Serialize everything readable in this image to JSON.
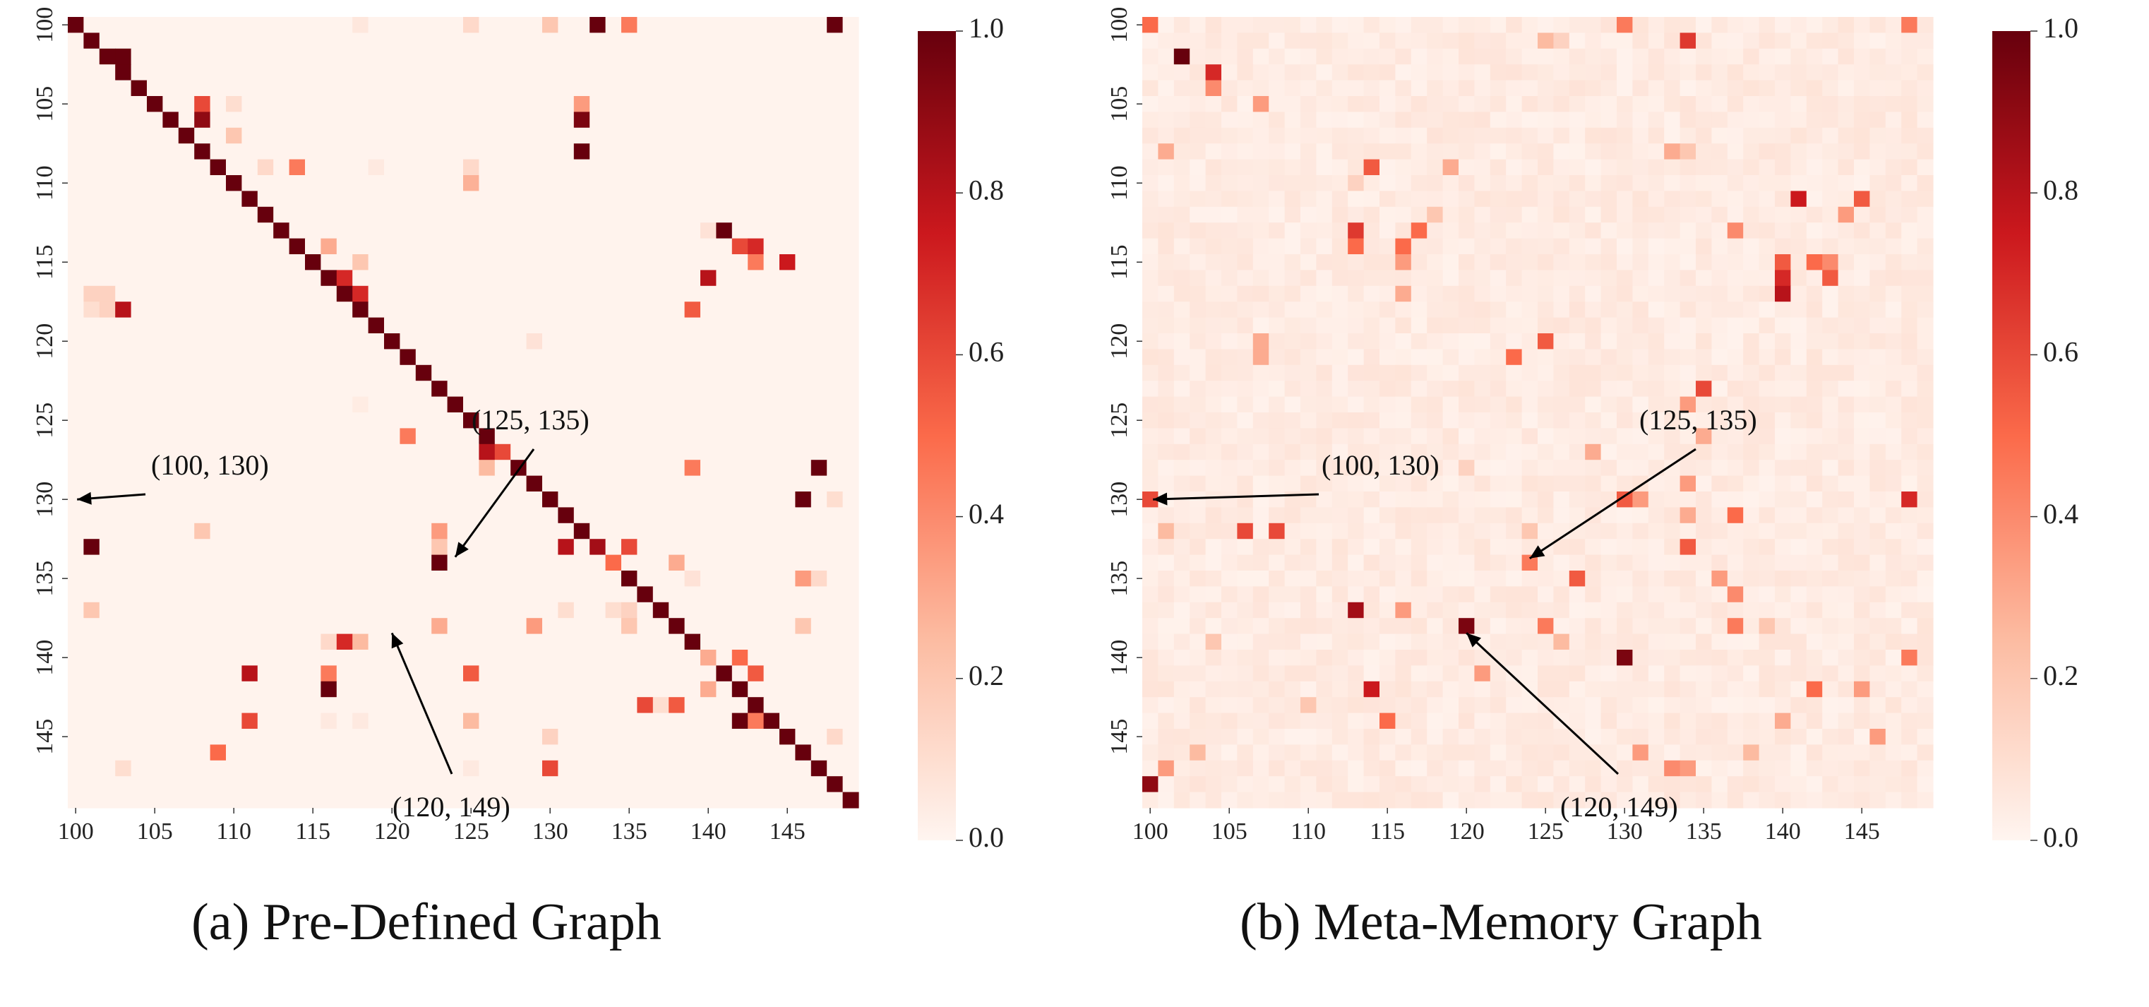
{
  "colors": {
    "low": "#fff5f0",
    "mid_low": "#fcbba1",
    "mid": "#fb6a4a",
    "mid_high": "#cb181d",
    "high": "#67000d"
  },
  "chart_data": [
    {
      "type": "heatmap",
      "title": "(a)  Pre-Defined Graph",
      "xlabel": "",
      "ylabel": "",
      "node_range": [
        100,
        149
      ],
      "x_tick_labels": [
        "100",
        "105",
        "110",
        "115",
        "120",
        "125",
        "130",
        "135",
        "140",
        "145"
      ],
      "y_tick_labels": [
        "100",
        "105",
        "110",
        "115",
        "120",
        "125",
        "130",
        "135",
        "140",
        "145"
      ],
      "colorbar": {
        "range": [
          0.0,
          1.0
        ],
        "tick_labels": [
          "0.0",
          "0.2",
          "0.4",
          "0.6",
          "0.8",
          "1.0"
        ]
      },
      "diagonal_value": 1.0,
      "background_value": 0.01,
      "cells": [
        [
          100,
          130,
          0.2
        ],
        [
          100,
          133,
          1.0
        ],
        [
          100,
          135,
          0.45
        ],
        [
          100,
          148,
          1.0
        ],
        [
          100,
          125,
          0.12
        ],
        [
          100,
          118,
          0.06
        ],
        [
          102,
          102,
          1.0
        ],
        [
          102,
          103,
          1.0
        ],
        [
          105,
          108,
          0.6
        ],
        [
          105,
          110,
          0.1
        ],
        [
          105,
          132,
          0.35
        ],
        [
          106,
          108,
          0.9
        ],
        [
          106,
          132,
          0.95
        ],
        [
          107,
          110,
          0.2
        ],
        [
          108,
          132,
          1.0
        ],
        [
          109,
          112,
          0.12
        ],
        [
          109,
          114,
          0.45
        ],
        [
          109,
          125,
          0.12
        ],
        [
          109,
          119,
          0.05
        ],
        [
          110,
          125,
          0.28
        ],
        [
          113,
          140,
          0.08
        ],
        [
          113,
          141,
          1.0
        ],
        [
          114,
          116,
          0.3
        ],
        [
          114,
          142,
          0.6
        ],
        [
          114,
          143,
          0.7
        ],
        [
          115,
          143,
          0.45
        ],
        [
          115,
          145,
          0.75
        ],
        [
          115,
          118,
          0.2
        ],
        [
          116,
          116,
          1.0
        ],
        [
          116,
          140,
          0.8
        ],
        [
          116,
          117,
          0.7
        ],
        [
          117,
          101,
          0.15
        ],
        [
          117,
          102,
          0.15
        ],
        [
          117,
          118,
          0.7
        ],
        [
          118,
          101,
          0.1
        ],
        [
          118,
          102,
          0.15
        ],
        [
          118,
          103,
          0.8
        ],
        [
          118,
          139,
          0.55
        ],
        [
          120,
          129,
          0.08
        ],
        [
          124,
          118,
          0.04
        ],
        [
          126,
          121,
          0.45
        ],
        [
          127,
          126,
          0.8
        ],
        [
          127,
          127,
          0.6
        ],
        [
          128,
          126,
          0.25
        ],
        [
          128,
          139,
          0.45
        ],
        [
          128,
          147,
          1.0
        ],
        [
          130,
          146,
          1.0
        ],
        [
          130,
          148,
          0.1
        ],
        [
          132,
          108,
          0.2
        ],
        [
          132,
          123,
          0.35
        ],
        [
          133,
          101,
          1.0
        ],
        [
          133,
          123,
          0.2
        ],
        [
          133,
          131,
          0.8
        ],
        [
          133,
          133,
          0.85
        ],
        [
          133,
          135,
          0.6
        ],
        [
          134,
          123,
          1.0
        ],
        [
          134,
          134,
          0.5
        ],
        [
          134,
          138,
          0.3
        ],
        [
          135,
          139,
          0.08
        ],
        [
          135,
          146,
          0.35
        ],
        [
          135,
          147,
          0.12
        ],
        [
          137,
          101,
          0.2
        ],
        [
          137,
          131,
          0.1
        ],
        [
          137,
          134,
          0.1
        ],
        [
          137,
          135,
          0.15
        ],
        [
          138,
          123,
          0.3
        ],
        [
          138,
          129,
          0.35
        ],
        [
          138,
          135,
          0.2
        ],
        [
          138,
          146,
          0.2
        ],
        [
          139,
          117,
          0.7
        ],
        [
          139,
          118,
          0.25
        ],
        [
          139,
          116,
          0.12
        ],
        [
          140,
          140,
          0.3
        ],
        [
          140,
          142,
          0.5
        ],
        [
          141,
          111,
          0.8
        ],
        [
          141,
          116,
          0.45
        ],
        [
          141,
          125,
          0.55
        ],
        [
          141,
          143,
          0.55
        ],
        [
          142,
          116,
          1.0
        ],
        [
          142,
          140,
          0.3
        ],
        [
          143,
          136,
          0.6
        ],
        [
          143,
          138,
          0.55
        ],
        [
          143,
          137,
          0.1
        ],
        [
          144,
          111,
          0.6
        ],
        [
          144,
          118,
          0.05
        ],
        [
          144,
          116,
          0.05
        ],
        [
          144,
          125,
          0.25
        ],
        [
          144,
          142,
          1.0
        ],
        [
          144,
          143,
          0.45
        ],
        [
          145,
          130,
          0.15
        ],
        [
          145,
          148,
          0.12
        ],
        [
          146,
          109,
          0.5
        ],
        [
          147,
          103,
          0.1
        ],
        [
          147,
          130,
          0.6
        ],
        [
          147,
          125,
          0.05
        ]
      ],
      "annotations": [
        {
          "text": "(100, 130)"
        },
        {
          "text": "(125, 135)"
        },
        {
          "text": "(120, 149)"
        }
      ]
    },
    {
      "type": "heatmap",
      "title": "(b)  Meta-Memory Graph",
      "xlabel": "",
      "ylabel": "",
      "node_range": [
        100,
        149
      ],
      "x_tick_labels": [
        "100",
        "105",
        "110",
        "115",
        "120",
        "125",
        "130",
        "135",
        "140",
        "145"
      ],
      "y_tick_labels": [
        "100",
        "105",
        "110",
        "115",
        "120",
        "125",
        "130",
        "135",
        "140",
        "145"
      ],
      "colorbar": {
        "range": [
          0.0,
          1.0
        ],
        "tick_labels": [
          "0.0",
          "0.2",
          "0.4",
          "0.6",
          "0.8",
          "1.0"
        ]
      },
      "diagonal_value": null,
      "background_value": 0.04,
      "cells": [
        [
          100,
          100,
          0.5
        ],
        [
          100,
          130,
          0.45
        ],
        [
          100,
          148,
          0.45
        ],
        [
          101,
          134,
          0.65
        ],
        [
          101,
          125,
          0.25
        ],
        [
          101,
          126,
          0.15
        ],
        [
          102,
          102,
          1.0
        ],
        [
          103,
          104,
          0.7
        ],
        [
          104,
          104,
          0.4
        ],
        [
          105,
          107,
          0.35
        ],
        [
          108,
          101,
          0.3
        ],
        [
          108,
          133,
          0.3
        ],
        [
          108,
          134,
          0.2
        ],
        [
          109,
          114,
          0.55
        ],
        [
          109,
          119,
          0.3
        ],
        [
          110,
          113,
          0.15
        ],
        [
          111,
          141,
          0.75
        ],
        [
          111,
          145,
          0.55
        ],
        [
          112,
          118,
          0.2
        ],
        [
          112,
          144,
          0.35
        ],
        [
          113,
          113,
          0.65
        ],
        [
          113,
          117,
          0.5
        ],
        [
          113,
          137,
          0.4
        ],
        [
          114,
          113,
          0.5
        ],
        [
          114,
          116,
          0.5
        ],
        [
          115,
          116,
          0.35
        ],
        [
          115,
          140,
          0.55
        ],
        [
          115,
          142,
          0.5
        ],
        [
          115,
          143,
          0.4
        ],
        [
          116,
          140,
          0.7
        ],
        [
          116,
          143,
          0.55
        ],
        [
          117,
          140,
          0.8
        ],
        [
          117,
          116,
          0.3
        ],
        [
          120,
          125,
          0.55
        ],
        [
          120,
          107,
          0.3
        ],
        [
          121,
          123,
          0.5
        ],
        [
          121,
          107,
          0.3
        ],
        [
          123,
          135,
          0.6
        ],
        [
          124,
          134,
          0.35
        ],
        [
          126,
          135,
          0.3
        ],
        [
          127,
          128,
          0.3
        ],
        [
          128,
          120,
          0.15
        ],
        [
          129,
          134,
          0.35
        ],
        [
          130,
          100,
          0.6
        ],
        [
          130,
          130,
          0.55
        ],
        [
          130,
          131,
          0.35
        ],
        [
          130,
          148,
          0.7
        ],
        [
          131,
          137,
          0.5
        ],
        [
          131,
          134,
          0.3
        ],
        [
          132,
          106,
          0.6
        ],
        [
          132,
          108,
          0.6
        ],
        [
          132,
          124,
          0.2
        ],
        [
          132,
          101,
          0.25
        ],
        [
          133,
          134,
          0.55
        ],
        [
          134,
          124,
          0.45
        ],
        [
          135,
          127,
          0.55
        ],
        [
          135,
          136,
          0.35
        ],
        [
          136,
          137,
          0.4
        ],
        [
          137,
          113,
          0.85
        ],
        [
          137,
          116,
          0.35
        ],
        [
          138,
          120,
          0.95
        ],
        [
          138,
          125,
          0.45
        ],
        [
          138,
          137,
          0.45
        ],
        [
          138,
          139,
          0.2
        ],
        [
          139,
          104,
          0.2
        ],
        [
          139,
          126,
          0.25
        ],
        [
          140,
          130,
          0.95
        ],
        [
          140,
          148,
          0.45
        ],
        [
          141,
          121,
          0.35
        ],
        [
          142,
          114,
          0.75
        ],
        [
          142,
          142,
          0.5
        ],
        [
          142,
          145,
          0.35
        ],
        [
          143,
          110,
          0.2
        ],
        [
          144,
          115,
          0.5
        ],
        [
          144,
          140,
          0.3
        ],
        [
          145,
          146,
          0.35
        ],
        [
          146,
          103,
          0.25
        ],
        [
          146,
          131,
          0.35
        ],
        [
          146,
          138,
          0.25
        ],
        [
          147,
          101,
          0.35
        ],
        [
          147,
          133,
          0.4
        ],
        [
          147,
          134,
          0.35
        ],
        [
          148,
          100,
          0.9
        ]
      ],
      "annotations": [
        {
          "text": "(100, 130)"
        },
        {
          "text": "(125, 135)"
        },
        {
          "text": "(120, 149)"
        }
      ]
    }
  ]
}
